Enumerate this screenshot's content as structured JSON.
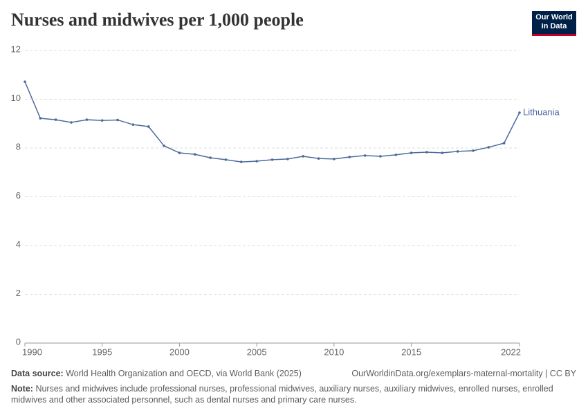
{
  "chart_data": {
    "type": "line",
    "title": "Nurses and midwives per 1,000 people",
    "logo": [
      "Our World",
      "in Data"
    ],
    "source_label": "Data source:",
    "source_text": "World Health Organization and OECD, via World Bank (2025)",
    "url": "OurWorldinData.org/exemplars-maternal-mortality | CC BY",
    "note_label": "Note:",
    "note_text": "Nurses and midwives include professional nurses, professional midwives, auxiliary nurses, auxiliary midwives, enrolled nurses, enrolled midwives and other associated personnel, such as dental nurses and primary care nurses.",
    "x": [
      1990,
      1991,
      1992,
      1993,
      1994,
      1995,
      1996,
      1997,
      1998,
      1999,
      2000,
      2001,
      2002,
      2003,
      2004,
      2005,
      2006,
      2007,
      2008,
      2009,
      2010,
      2011,
      2012,
      2013,
      2014,
      2015,
      2016,
      2017,
      2018,
      2019,
      2020,
      2021,
      2022
    ],
    "series": [
      {
        "name": "Lithuania",
        "color": "#4c6a9c",
        "values": [
          10.72,
          9.22,
          9.16,
          9.05,
          9.16,
          9.13,
          9.15,
          8.96,
          8.88,
          8.09,
          7.8,
          7.74,
          7.6,
          7.52,
          7.43,
          7.46,
          7.52,
          7.55,
          7.66,
          7.57,
          7.55,
          7.63,
          7.69,
          7.66,
          7.72,
          7.8,
          7.83,
          7.8,
          7.86,
          7.89,
          8.03,
          8.2,
          9.45
        ]
      }
    ],
    "xlim": [
      1990,
      2022
    ],
    "xticks": [
      1990,
      1995,
      2000,
      2005,
      2010,
      2015,
      2022
    ],
    "ylim": [
      0,
      12
    ],
    "yticks": [
      0,
      2,
      4,
      6,
      8,
      10,
      12
    ],
    "grid": true
  }
}
